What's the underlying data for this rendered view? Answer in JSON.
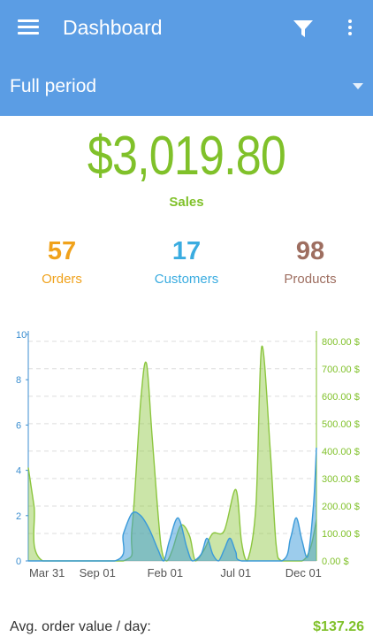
{
  "appbar": {
    "title": "Dashboard",
    "period": "Full period",
    "icons": [
      "menu-icon",
      "filter-icon",
      "more-vert-icon"
    ],
    "background": "#5b9de4"
  },
  "summary": {
    "sales_value": "$3,019.80",
    "sales_label": "Sales",
    "accent": "#80c12a"
  },
  "stats": [
    {
      "value": "57",
      "label": "Orders",
      "color": "#f0a21c"
    },
    {
      "value": "17",
      "label": "Customers",
      "color": "#3aace0"
    },
    {
      "value": "98",
      "label": "Products",
      "color": "#9e6e60"
    }
  ],
  "chart_data": {
    "type": "area",
    "title": "",
    "xlabel": "",
    "ylabel": "",
    "x_ticks": [
      "Mar 31",
      "Sep 01",
      "Feb 01",
      "Jul 01",
      "Dec 01"
    ],
    "y_left": {
      "ticks": [
        "0",
        "2",
        "4",
        "6",
        "8",
        "10"
      ],
      "lim": [
        0,
        10
      ],
      "color": "#3b8ed0"
    },
    "y_right": {
      "ticks": [
        "0.00 $",
        "100.00 $",
        "200.00 $",
        "300.00 $",
        "400.00 $",
        "500.00 $",
        "600.00 $",
        "700.00 $",
        "800.00 $"
      ],
      "lim": [
        0,
        825
      ],
      "color": "#80c12a"
    },
    "grid": true,
    "series": [
      {
        "axis": "right",
        "color": "#8cc63f",
        "points": [
          [
            0.0,
            340
          ],
          [
            0.02,
            200
          ],
          [
            0.05,
            0
          ],
          [
            0.33,
            0
          ],
          [
            0.36,
            120
          ],
          [
            0.39,
            580
          ],
          [
            0.41,
            720
          ],
          [
            0.43,
            450
          ],
          [
            0.46,
            60
          ],
          [
            0.48,
            0
          ],
          [
            0.5,
            40
          ],
          [
            0.53,
            130
          ],
          [
            0.56,
            90
          ],
          [
            0.58,
            0
          ],
          [
            0.61,
            40
          ],
          [
            0.64,
            100
          ],
          [
            0.68,
            110
          ],
          [
            0.72,
            260
          ],
          [
            0.74,
            70
          ],
          [
            0.76,
            0
          ],
          [
            0.79,
            200
          ],
          [
            0.81,
            780
          ],
          [
            0.84,
            400
          ],
          [
            0.86,
            60
          ],
          [
            0.88,
            0
          ],
          [
            0.95,
            0
          ],
          [
            0.98,
            50
          ],
          [
            1.0,
            150
          ]
        ]
      },
      {
        "axis": "left",
        "color": "#3a9ad9",
        "points": [
          [
            0.0,
            0
          ],
          [
            0.3,
            0
          ],
          [
            0.33,
            1.2
          ],
          [
            0.36,
            2.1
          ],
          [
            0.39,
            2.0
          ],
          [
            0.42,
            1.4
          ],
          [
            0.45,
            0.5
          ],
          [
            0.47,
            0
          ],
          [
            0.49,
            0.9
          ],
          [
            0.52,
            1.9
          ],
          [
            0.55,
            0.6
          ],
          [
            0.57,
            0
          ],
          [
            0.6,
            0.3
          ],
          [
            0.62,
            1.0
          ],
          [
            0.64,
            0.3
          ],
          [
            0.66,
            0
          ],
          [
            0.68,
            0.5
          ],
          [
            0.7,
            1.0
          ],
          [
            0.72,
            0.4
          ],
          [
            0.74,
            0
          ],
          [
            0.88,
            0
          ],
          [
            0.91,
            1.0
          ],
          [
            0.93,
            1.9
          ],
          [
            0.95,
            0.9
          ],
          [
            0.97,
            0.2
          ],
          [
            0.99,
            2.5
          ],
          [
            1.0,
            5.0
          ]
        ]
      }
    ]
  },
  "footer": {
    "label": "Avg. order value / day:",
    "value": "$137.26"
  }
}
